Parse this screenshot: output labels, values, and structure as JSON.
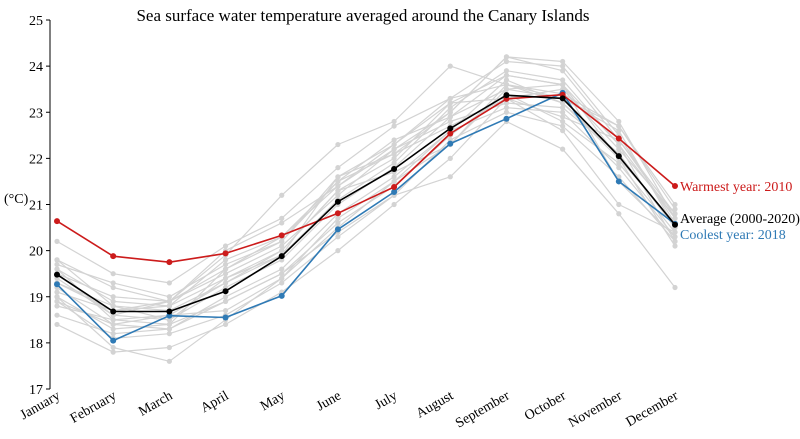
{
  "chart_data": {
    "type": "line",
    "title": "Sea surface water temperature averaged around the Canary Islands",
    "xlabel": "",
    "ylabel": "(°C)",
    "categories": [
      "January",
      "February",
      "March",
      "April",
      "May",
      "June",
      "July",
      "August",
      "September",
      "October",
      "November",
      "December"
    ],
    "yticks": [
      "17",
      "18",
      "19",
      "20",
      "21",
      "22",
      "23",
      "24",
      "25"
    ],
    "ylim": [
      17,
      25
    ],
    "grid": false,
    "legend": "direct labels at right end of lines",
    "colors": {
      "background_years": "#d3d3d3",
      "average": "#000000",
      "warmest": "#cc1b1b",
      "coolest": "#2f7ab5"
    },
    "background_series": [
      [
        19.8,
        19.2,
        18.9,
        19.6,
        20.2,
        21.5,
        22.1,
        23.0,
        24.2,
        23.9,
        22.4,
        20.8
      ],
      [
        19.6,
        18.9,
        18.8,
        19.4,
        20.0,
        21.3,
        22.0,
        23.2,
        23.8,
        23.6,
        22.0,
        20.6
      ],
      [
        19.4,
        18.6,
        18.5,
        19.2,
        19.8,
        21.0,
        21.8,
        22.9,
        23.5,
        23.3,
        22.6,
        20.5
      ],
      [
        19.2,
        18.4,
        18.3,
        19.0,
        19.6,
        20.8,
        21.6,
        22.6,
        23.1,
        23.0,
        21.8,
        20.3
      ],
      [
        19.0,
        18.3,
        18.4,
        18.9,
        19.5,
        20.6,
        21.4,
        22.5,
        23.4,
        22.8,
        21.9,
        20.4
      ],
      [
        18.8,
        18.5,
        18.6,
        18.7,
        19.4,
        20.5,
        21.5,
        22.3,
        23.6,
        23.4,
        22.7,
        20.9
      ],
      [
        19.3,
        18.8,
        18.7,
        19.3,
        19.9,
        21.1,
        21.9,
        23.1,
        23.9,
        23.7,
        22.3,
        20.7
      ],
      [
        19.5,
        19.0,
        18.9,
        19.5,
        20.1,
        21.2,
        22.2,
        22.8,
        23.2,
        23.1,
        22.1,
        20.5
      ],
      [
        18.9,
        18.1,
        18.2,
        18.6,
        19.3,
        20.3,
        21.2,
        22.4,
        23.0,
        22.7,
        21.6,
        20.2
      ],
      [
        19.1,
        18.7,
        18.8,
        19.8,
        20.3,
        21.4,
        22.3,
        23.3,
        24.1,
        24.0,
        22.5,
        20.6
      ],
      [
        19.7,
        19.3,
        19.0,
        19.7,
        20.2,
        21.6,
        22.1,
        22.7,
        23.3,
        23.5,
        22.2,
        20.8
      ],
      [
        18.4,
        17.8,
        17.9,
        18.4,
        19.1,
        20.0,
        21.0,
        22.0,
        23.3,
        22.6,
        21.0,
        20.4
      ],
      [
        19.6,
        18.5,
        18.4,
        19.6,
        20.3,
        21.5,
        22.4,
        22.9,
        23.8,
        23.6,
        22.3,
        20.2
      ],
      [
        19.0,
        17.9,
        17.6,
        18.5,
        19.4,
        20.7,
        21.5,
        22.6,
        23.7,
        23.2,
        22.0,
        20.1
      ],
      [
        19.5,
        18.6,
        18.9,
        20.0,
        20.6,
        21.4,
        22.2,
        23.0,
        24.2,
        24.1,
        22.8,
        20.7
      ],
      [
        20.2,
        19.5,
        19.3,
        20.1,
        20.7,
        21.8,
        22.7,
        23.3,
        23.6,
        23.3,
        22.7,
        21.0
      ],
      [
        18.6,
        18.2,
        18.3,
        18.9,
        19.5,
        20.4,
        21.2,
        21.6,
        22.8,
        22.2,
        20.8,
        19.2
      ],
      [
        19.3,
        18.7,
        18.9,
        19.9,
        21.2,
        22.3,
        22.8,
        24.0,
        23.6,
        23.2,
        22.1,
        20.5
      ],
      [
        18.9,
        18.4,
        18.6,
        19.3,
        20.0,
        21.3,
        21.7,
        22.3,
        23.5,
        23.6,
        21.5,
        20.3
      ],
      [
        19.8,
        18.8,
        18.5,
        19.4,
        19.9,
        21.6,
        22.3,
        23.2,
        23.3,
        22.9,
        22.4,
        20.7
      ]
    ],
    "series": [
      {
        "name": "Average (2000-2020)",
        "values": [
          19.48,
          18.68,
          18.68,
          19.12,
          19.88,
          21.06,
          21.77,
          22.65,
          23.37,
          23.3,
          22.05,
          20.56
        ]
      },
      {
        "name": "Warmest year: 2010",
        "values": [
          20.64,
          19.88,
          19.75,
          19.94,
          20.33,
          20.81,
          21.38,
          22.54,
          23.29,
          23.38,
          22.43,
          21.4
        ]
      },
      {
        "name": "Coolest year: 2018",
        "values": [
          19.27,
          18.05,
          18.59,
          18.55,
          19.02,
          20.46,
          21.27,
          22.32,
          22.86,
          23.42,
          21.5,
          20.58
        ]
      }
    ]
  }
}
